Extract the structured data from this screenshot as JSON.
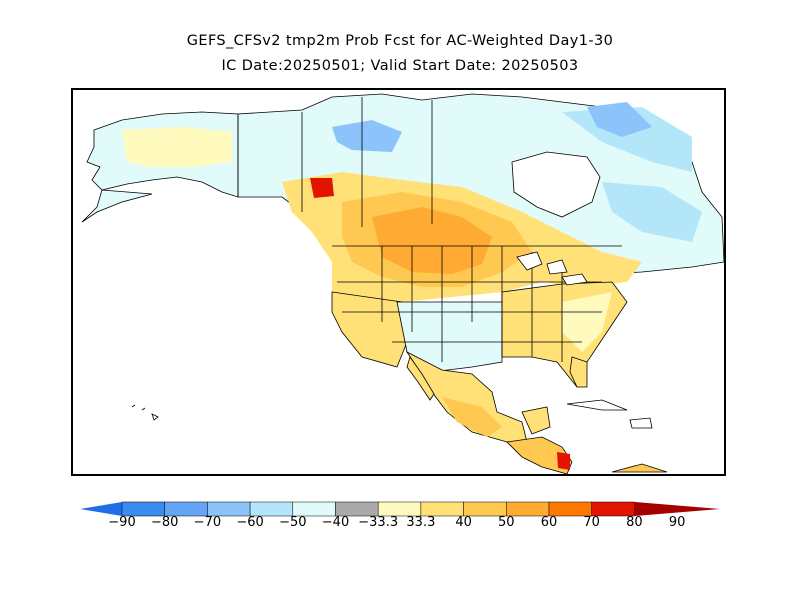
{
  "title_line1": "GEFS_CFSv2 tmp2m Prob Fcst for AC-Weighted Day1-30",
  "title_line2": "IC Date:20250501; Valid Start Date: 20250503",
  "legend": {
    "labels": [
      "-90",
      "-80",
      "-70",
      "-60",
      "-50",
      "-40",
      "-33.3",
      "33.3",
      "40",
      "50",
      "60",
      "70",
      "80",
      "90"
    ],
    "colors": [
      "#1e6ee6",
      "#3c8cf0",
      "#64a5f5",
      "#8cc3fa",
      "#b4e6fa",
      "#e1fafa",
      "#aaaaaa",
      "#fffabe",
      "#ffe178",
      "#ffc850",
      "#ffaa32",
      "#ff7800",
      "#e11400",
      "#a50000"
    ]
  },
  "map_colors": {
    "ocean": "#ffffff",
    "land_default": "#ffffff",
    "border": "#000000"
  }
}
